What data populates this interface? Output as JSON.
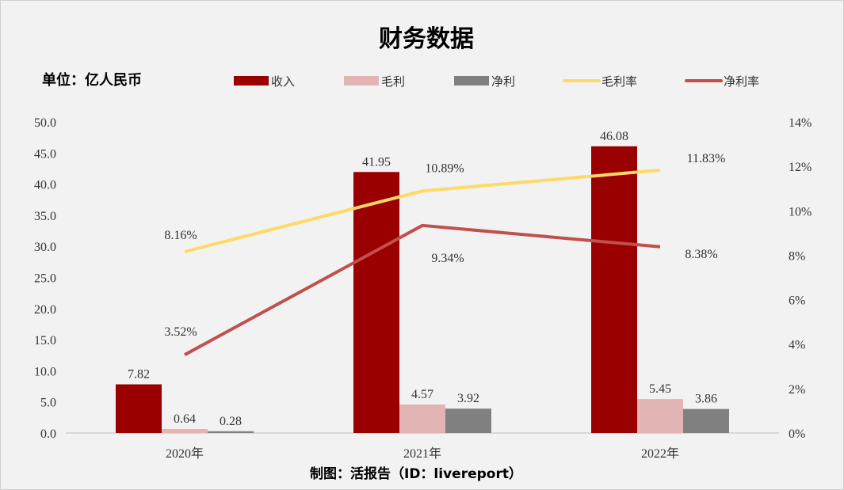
{
  "chart_data": {
    "type": "bar",
    "title": "财务数据",
    "unit_label": "单位：亿人民币",
    "footer": "制图：活报告（ID：livereport）",
    "categories": [
      "2020年",
      "2021年",
      "2022年"
    ],
    "y_left": {
      "lim": [
        0,
        50
      ],
      "ticks": [
        "0.0",
        "5.0",
        "10.0",
        "15.0",
        "20.0",
        "25.0",
        "30.0",
        "35.0",
        "40.0",
        "45.0",
        "50.0"
      ]
    },
    "y_right": {
      "lim": [
        0,
        14
      ],
      "ticks": [
        "0%",
        "2%",
        "4%",
        "6%",
        "8%",
        "10%",
        "12%",
        "14%"
      ]
    },
    "grid": false,
    "legend_position": "top",
    "series": [
      {
        "name": "收入",
        "type": "bar",
        "axis": "left",
        "color": "#9b0000",
        "values": [
          7.82,
          41.95,
          46.08
        ],
        "labels": [
          "7.82",
          "41.95",
          "46.08"
        ]
      },
      {
        "name": "毛利",
        "type": "bar",
        "axis": "left",
        "color": "#e3b4b4",
        "values": [
          0.64,
          4.57,
          5.45
        ],
        "labels": [
          "0.64",
          "4.57",
          "5.45"
        ]
      },
      {
        "name": "净利",
        "type": "bar",
        "axis": "left",
        "color": "#808080",
        "values": [
          0.28,
          3.92,
          3.86
        ],
        "labels": [
          "0.28",
          "3.92",
          "3.86"
        ]
      },
      {
        "name": "毛利率",
        "type": "line",
        "axis": "right",
        "color": "#ffd966",
        "values": [
          8.16,
          10.89,
          11.83
        ],
        "labels": [
          "8.16%",
          "10.89%",
          "11.83%"
        ]
      },
      {
        "name": "净利率",
        "type": "line",
        "axis": "right",
        "color": "#c0504d",
        "values": [
          3.52,
          9.34,
          8.38
        ],
        "labels": [
          "3.52%",
          "9.34%",
          "8.38%"
        ]
      }
    ]
  }
}
